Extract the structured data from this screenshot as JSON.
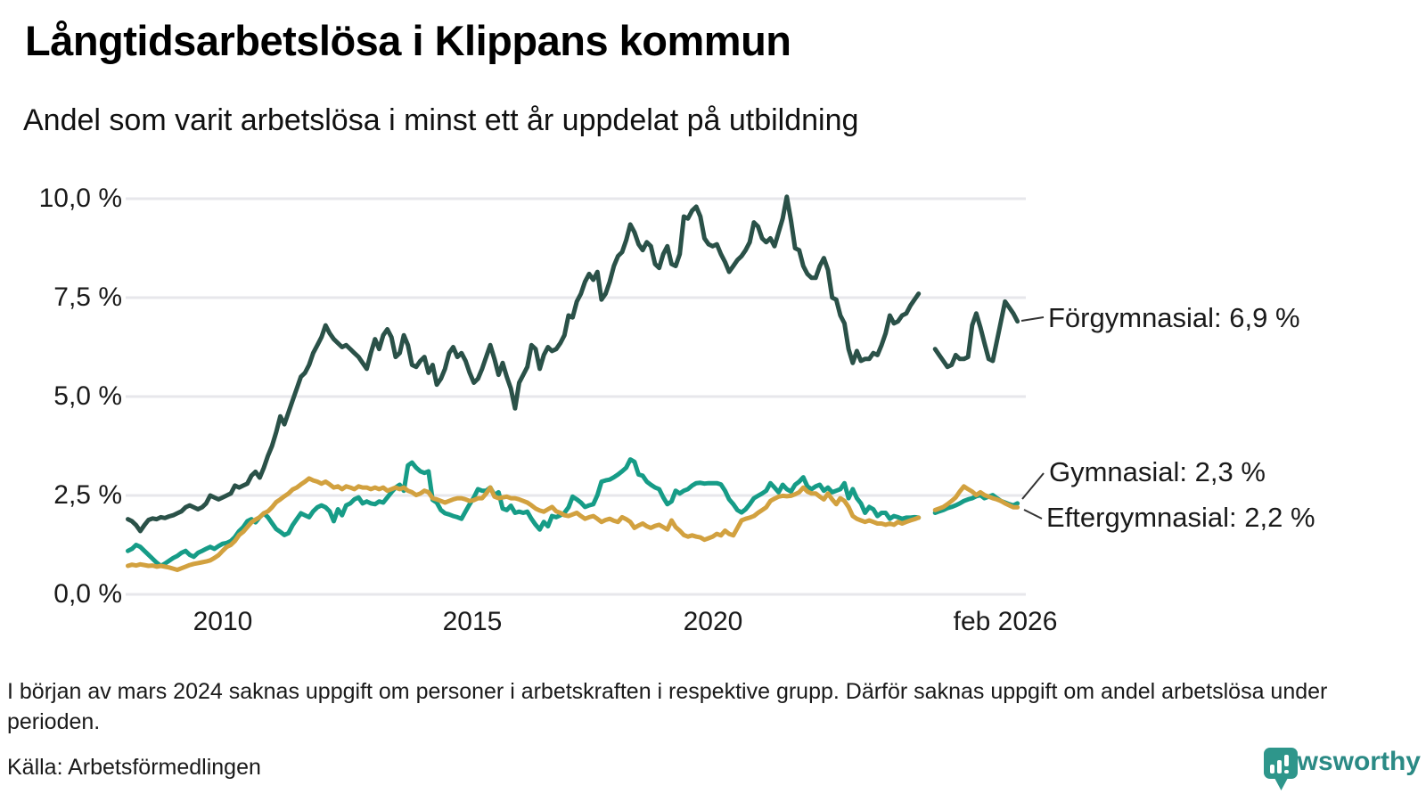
{
  "title": "Långtidsarbetslösa i Klippans kommun",
  "subtitle": "Andel som varit arbetslösa i minst ett år uppdelat på utbildning",
  "footnote": "I början av mars 2024 saknas uppgift om personer i arbetskraften i respektive grupp. Därför saknas uppgift om andel arbetslösa under perioden.",
  "source": "Källa: Arbetsförmedlingen",
  "branding": {
    "name": "Newsworthy",
    "text_color": "#2B8A85",
    "icon_color": "#2E968B"
  },
  "chart_data": {
    "type": "line",
    "title": "Långtidsarbetslösa i Klippans kommun",
    "subtitle": "Andel som varit arbetslösa i minst ett år uppdelat på utbildning",
    "x_start": "2008-02",
    "x_end": "2026-02",
    "x_interval": "monthly",
    "missing_data_period": [
      "2024-03",
      "2024-04",
      "2024-05"
    ],
    "grid": "horizontal",
    "ylim": [
      0,
      10.5
    ],
    "y_ticks": [
      "10,0 %",
      "7,5 %",
      "5,0 %",
      "2,5 %",
      "0,0 %"
    ],
    "y_tick_values": [
      10.0,
      7.5,
      5.0,
      2.5,
      0.0
    ],
    "x_ticks": [
      {
        "label": "2010",
        "time": "2010-01"
      },
      {
        "label": "2015",
        "time": "2015-01"
      },
      {
        "label": "2020",
        "time": "2020-01"
      },
      {
        "label": "feb 2026",
        "time": "2026-02"
      }
    ],
    "legend_position": "end-of-line-labels",
    "series": [
      {
        "name": "Förgymnasial",
        "end_label": "Förgymnasial: 6,9 %",
        "last_value": 6.9,
        "color": "#2A5148",
        "values": [
          1.9,
          1.85,
          1.75,
          1.6,
          1.75,
          1.88,
          1.92,
          1.9,
          1.95,
          1.93,
          1.97,
          2.0,
          2.05,
          2.1,
          2.2,
          2.25,
          2.2,
          2.15,
          2.2,
          2.3,
          2.5,
          2.45,
          2.4,
          2.45,
          2.5,
          2.55,
          2.75,
          2.7,
          2.75,
          2.8,
          3.0,
          3.1,
          2.95,
          3.2,
          3.5,
          3.75,
          4.1,
          4.5,
          4.3,
          4.6,
          4.9,
          5.2,
          5.5,
          5.6,
          5.8,
          6.1,
          6.3,
          6.5,
          6.8,
          6.6,
          6.45,
          6.35,
          6.25,
          6.3,
          6.2,
          6.1,
          6.0,
          5.85,
          5.7,
          6.1,
          6.45,
          6.2,
          6.55,
          6.7,
          6.5,
          6.0,
          6.1,
          6.55,
          6.3,
          5.8,
          5.75,
          5.9,
          6.0,
          5.6,
          5.8,
          5.3,
          5.45,
          5.7,
          6.1,
          6.25,
          6.0,
          6.1,
          5.9,
          5.6,
          5.35,
          5.45,
          5.7,
          6.0,
          6.3,
          5.95,
          5.55,
          5.85,
          5.5,
          5.2,
          4.7,
          5.35,
          5.55,
          5.75,
          6.3,
          6.2,
          5.7,
          6.05,
          6.25,
          6.15,
          6.2,
          6.35,
          6.55,
          7.05,
          7.0,
          7.4,
          7.6,
          7.9,
          8.1,
          7.95,
          8.15,
          7.45,
          7.6,
          7.9,
          8.3,
          8.55,
          8.65,
          8.95,
          9.35,
          9.15,
          8.85,
          8.7,
          8.9,
          8.8,
          8.35,
          8.25,
          8.6,
          8.8,
          8.35,
          8.3,
          8.6,
          9.55,
          9.5,
          9.7,
          9.8,
          9.55,
          9.0,
          8.85,
          8.8,
          8.85,
          8.6,
          8.4,
          8.15,
          8.3,
          8.45,
          8.55,
          8.7,
          8.9,
          9.4,
          9.3,
          9.0,
          8.9,
          9.0,
          8.8,
          9.15,
          9.5,
          10.05,
          9.45,
          8.75,
          8.7,
          8.3,
          8.1,
          8.0,
          8.0,
          8.3,
          8.5,
          8.2,
          7.5,
          7.45,
          7.05,
          6.85,
          6.2,
          5.85,
          6.15,
          5.9,
          5.95,
          5.95,
          6.1,
          6.05,
          6.3,
          6.6,
          7.05,
          6.85,
          6.9,
          7.05,
          7.1,
          7.3,
          7.45,
          7.6,
          null,
          null,
          null,
          6.2,
          6.05,
          5.9,
          5.75,
          5.8,
          6.05,
          5.95,
          5.95,
          6.0,
          6.8,
          7.1,
          6.75,
          6.35,
          5.95,
          5.9,
          6.4,
          6.9,
          7.4,
          7.25,
          7.1,
          6.9
        ]
      },
      {
        "name": "Gymnasial",
        "end_label": "Gymnasial: 2,3 %",
        "last_value": 2.3,
        "color": "#169C87",
        "values": [
          1.1,
          1.15,
          1.25,
          1.2,
          1.1,
          1.0,
          0.9,
          0.8,
          0.72,
          0.78,
          0.85,
          0.92,
          0.97,
          1.05,
          1.1,
          1.0,
          0.95,
          1.05,
          1.1,
          1.15,
          1.2,
          1.15,
          1.22,
          1.28,
          1.3,
          1.35,
          1.45,
          1.6,
          1.7,
          1.85,
          1.9,
          1.82,
          1.95,
          2.05,
          1.95,
          1.8,
          1.65,
          1.58,
          1.5,
          1.55,
          1.75,
          1.9,
          2.05,
          2.0,
          1.95,
          2.1,
          2.2,
          2.25,
          2.2,
          2.1,
          1.85,
          2.15,
          2.0,
          2.25,
          2.3,
          2.4,
          2.45,
          2.3,
          2.35,
          2.3,
          2.28,
          2.35,
          2.32,
          2.45,
          2.58,
          2.7,
          2.77,
          2.62,
          3.26,
          3.33,
          3.2,
          3.11,
          3.07,
          3.11,
          2.39,
          2.32,
          2.13,
          2.05,
          2.02,
          1.98,
          1.95,
          1.91,
          2.1,
          2.28,
          2.45,
          2.66,
          2.62,
          2.62,
          2.7,
          2.51,
          2.58,
          2.17,
          2.13,
          2.24,
          2.06,
          2.09,
          2.06,
          2.09,
          1.91,
          1.76,
          1.64,
          1.83,
          1.72,
          1.98,
          1.95,
          2.0,
          2.06,
          2.2,
          2.47,
          2.4,
          2.32,
          2.21,
          2.25,
          2.28,
          2.51,
          2.85,
          2.88,
          2.9,
          2.96,
          3.03,
          3.11,
          3.2,
          3.41,
          3.35,
          3.03,
          3.0,
          2.85,
          2.77,
          2.7,
          2.66,
          2.45,
          2.28,
          2.35,
          2.62,
          2.55,
          2.62,
          2.66,
          2.75,
          2.81,
          2.82,
          2.8,
          2.81,
          2.81,
          2.81,
          2.78,
          2.62,
          2.4,
          2.28,
          2.13,
          2.07,
          2.15,
          2.28,
          2.43,
          2.49,
          2.55,
          2.62,
          2.81,
          2.7,
          2.58,
          2.77,
          2.66,
          2.6,
          2.77,
          2.85,
          2.96,
          2.73,
          2.66,
          2.73,
          2.77,
          2.62,
          2.7,
          2.58,
          2.62,
          2.66,
          2.81,
          2.43,
          2.66,
          2.43,
          2.3,
          2.06,
          2.21,
          2.15,
          1.98,
          2.06,
          2.06,
          1.91,
          1.98,
          1.95,
          1.91,
          1.94,
          1.94,
          1.95,
          1.94,
          null,
          null,
          null,
          2.06,
          2.1,
          2.13,
          2.18,
          2.21,
          2.25,
          2.3,
          2.36,
          2.4,
          2.43,
          2.48,
          2.51,
          2.43,
          2.47,
          2.51,
          2.43,
          2.36,
          2.32,
          2.28,
          2.25,
          2.3
        ]
      },
      {
        "name": "Eftergymnasial",
        "end_label": "Eftergymnasial: 2,2 %",
        "last_value": 2.2,
        "color": "#D2A13F",
        "values": [
          0.72,
          0.75,
          0.73,
          0.76,
          0.74,
          0.72,
          0.73,
          0.7,
          0.72,
          0.7,
          0.68,
          0.65,
          0.62,
          0.66,
          0.7,
          0.74,
          0.77,
          0.79,
          0.81,
          0.83,
          0.86,
          0.92,
          0.99,
          1.1,
          1.2,
          1.25,
          1.35,
          1.5,
          1.58,
          1.7,
          1.82,
          1.89,
          1.95,
          2.05,
          2.1,
          2.2,
          2.33,
          2.4,
          2.48,
          2.55,
          2.65,
          2.7,
          2.78,
          2.85,
          2.93,
          2.88,
          2.85,
          2.8,
          2.85,
          2.78,
          2.7,
          2.73,
          2.66,
          2.73,
          2.7,
          2.66,
          2.73,
          2.7,
          2.7,
          2.66,
          2.7,
          2.66,
          2.7,
          2.62,
          2.66,
          2.7,
          2.66,
          2.7,
          2.62,
          2.58,
          2.51,
          2.55,
          2.62,
          2.58,
          2.43,
          2.4,
          2.36,
          2.32,
          2.36,
          2.4,
          2.43,
          2.43,
          2.4,
          2.36,
          2.38,
          2.43,
          2.43,
          2.55,
          2.7,
          2.47,
          2.43,
          2.45,
          2.47,
          2.43,
          2.43,
          2.4,
          2.36,
          2.32,
          2.25,
          2.17,
          2.12,
          2.09,
          2.15,
          2.21,
          2.1,
          2.06,
          2.0,
          1.98,
          2.02,
          2.06,
          1.98,
          1.91,
          1.95,
          1.98,
          1.91,
          1.83,
          1.88,
          1.91,
          1.86,
          1.83,
          1.95,
          1.9,
          1.83,
          1.68,
          1.74,
          1.79,
          1.72,
          1.68,
          1.73,
          1.76,
          1.7,
          1.64,
          1.87,
          1.7,
          1.61,
          1.5,
          1.46,
          1.49,
          1.46,
          1.44,
          1.38,
          1.42,
          1.46,
          1.53,
          1.49,
          1.61,
          1.53,
          1.49,
          1.68,
          1.87,
          1.91,
          1.94,
          1.98,
          2.06,
          2.13,
          2.2,
          2.36,
          2.42,
          2.47,
          2.49,
          2.48,
          2.49,
          2.53,
          2.58,
          2.7,
          2.6,
          2.55,
          2.55,
          2.47,
          2.4,
          2.55,
          2.4,
          2.28,
          2.43,
          2.36,
          2.21,
          1.98,
          1.91,
          1.87,
          1.83,
          1.87,
          1.83,
          1.79,
          1.79,
          1.76,
          1.79,
          1.76,
          1.83,
          1.79,
          1.83,
          1.87,
          1.9,
          1.94,
          null,
          null,
          null,
          2.13,
          2.17,
          2.21,
          2.28,
          2.36,
          2.45,
          2.6,
          2.73,
          2.66,
          2.6,
          2.51,
          2.58,
          2.51,
          2.47,
          2.43,
          2.4,
          2.36,
          2.3,
          2.25,
          2.2,
          2.2
        ]
      }
    ]
  }
}
